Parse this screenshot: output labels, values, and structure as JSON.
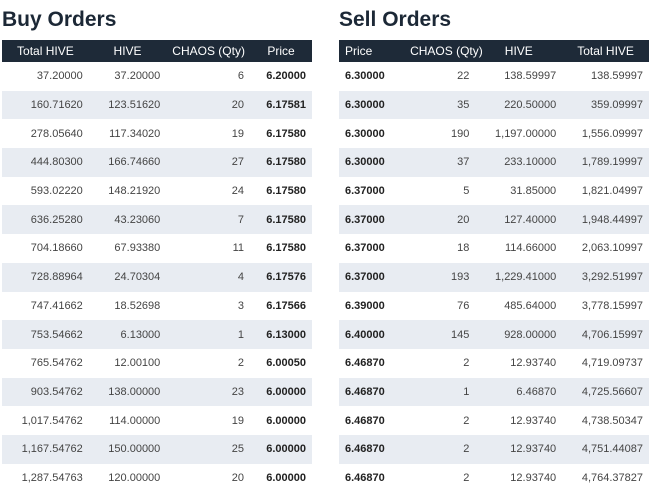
{
  "buy": {
    "title": "Buy Orders",
    "headers": [
      "Total HIVE",
      "HIVE",
      "CHAOS (Qty)",
      "Price"
    ],
    "rows": [
      [
        "37.20000",
        "37.20000",
        "6",
        "6.20000"
      ],
      [
        "160.71620",
        "123.51620",
        "20",
        "6.17581"
      ],
      [
        "278.05640",
        "117.34020",
        "19",
        "6.17580"
      ],
      [
        "444.80300",
        "166.74660",
        "27",
        "6.17580"
      ],
      [
        "593.02220",
        "148.21920",
        "24",
        "6.17580"
      ],
      [
        "636.25280",
        "43.23060",
        "7",
        "6.17580"
      ],
      [
        "704.18660",
        "67.93380",
        "11",
        "6.17580"
      ],
      [
        "728.88964",
        "24.70304",
        "4",
        "6.17576"
      ],
      [
        "747.41662",
        "18.52698",
        "3",
        "6.17566"
      ],
      [
        "753.54662",
        "6.13000",
        "1",
        "6.13000"
      ],
      [
        "765.54762",
        "12.00100",
        "2",
        "6.00050"
      ],
      [
        "903.54762",
        "138.00000",
        "23",
        "6.00000"
      ],
      [
        "1,017.54762",
        "114.00000",
        "19",
        "6.00000"
      ],
      [
        "1,167.54762",
        "150.00000",
        "25",
        "6.00000"
      ],
      [
        "1,287.54763",
        "120.00000",
        "20",
        "6.00000"
      ]
    ]
  },
  "sell": {
    "title": "Sell Orders",
    "headers": [
      "Price",
      "CHAOS (Qty)",
      "HIVE",
      "Total HIVE"
    ],
    "rows": [
      [
        "6.30000",
        "22",
        "138.59997",
        "138.59997"
      ],
      [
        "6.30000",
        "35",
        "220.50000",
        "359.09997"
      ],
      [
        "6.30000",
        "190",
        "1,197.00000",
        "1,556.09997"
      ],
      [
        "6.30000",
        "37",
        "233.10000",
        "1,789.19997"
      ],
      [
        "6.37000",
        "5",
        "31.85000",
        "1,821.04997"
      ],
      [
        "6.37000",
        "20",
        "127.40000",
        "1,948.44997"
      ],
      [
        "6.37000",
        "18",
        "114.66000",
        "2,063.10997"
      ],
      [
        "6.37000",
        "193",
        "1,229.41000",
        "3,292.51997"
      ],
      [
        "6.39000",
        "76",
        "485.64000",
        "3,778.15997"
      ],
      [
        "6.40000",
        "145",
        "928.00000",
        "4,706.15997"
      ],
      [
        "6.46870",
        "2",
        "12.93740",
        "4,719.09737"
      ],
      [
        "6.46870",
        "1",
        "6.46870",
        "4,725.56607"
      ],
      [
        "6.46870",
        "2",
        "12.93740",
        "4,738.50347"
      ],
      [
        "6.46870",
        "2",
        "12.93740",
        "4,751.44087"
      ],
      [
        "6.46870",
        "2",
        "12.93740",
        "4,764.37827"
      ]
    ]
  },
  "colors": {
    "header_bg": "#1e2a38",
    "row_alt_bg": "#e8ecf2",
    "title_color": "#1c2836"
  }
}
